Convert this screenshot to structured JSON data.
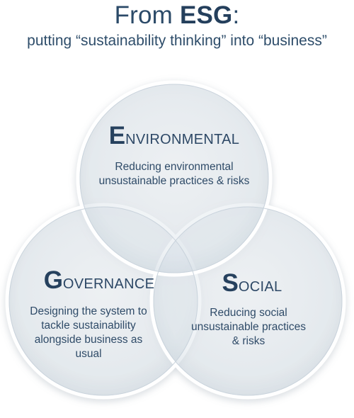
{
  "title": {
    "prefix": "From ",
    "bold": "ESG",
    "suffix": ":"
  },
  "subtitle": "putting “sustainability thinking” into “business”",
  "circles": {
    "environmental": {
      "initial": "E",
      "rest": "NVIRONMENTAL",
      "description": [
        "Reducing environmental",
        "unsustainable practices & risks"
      ]
    },
    "governance": {
      "initial": "G",
      "rest": "OVERNANCE",
      "description": [
        "Designing the system to",
        "tackle sustainability",
        "alongside business as",
        "usual"
      ]
    },
    "social": {
      "initial": "S",
      "rest": "OCIAL",
      "description": [
        "Reducing social",
        "unsustainable practices",
        "& risks"
      ]
    }
  },
  "colors": {
    "circle_fill": "#e3e9ee",
    "circle_edge": "#ffffff",
    "text": "#2e4a66"
  }
}
